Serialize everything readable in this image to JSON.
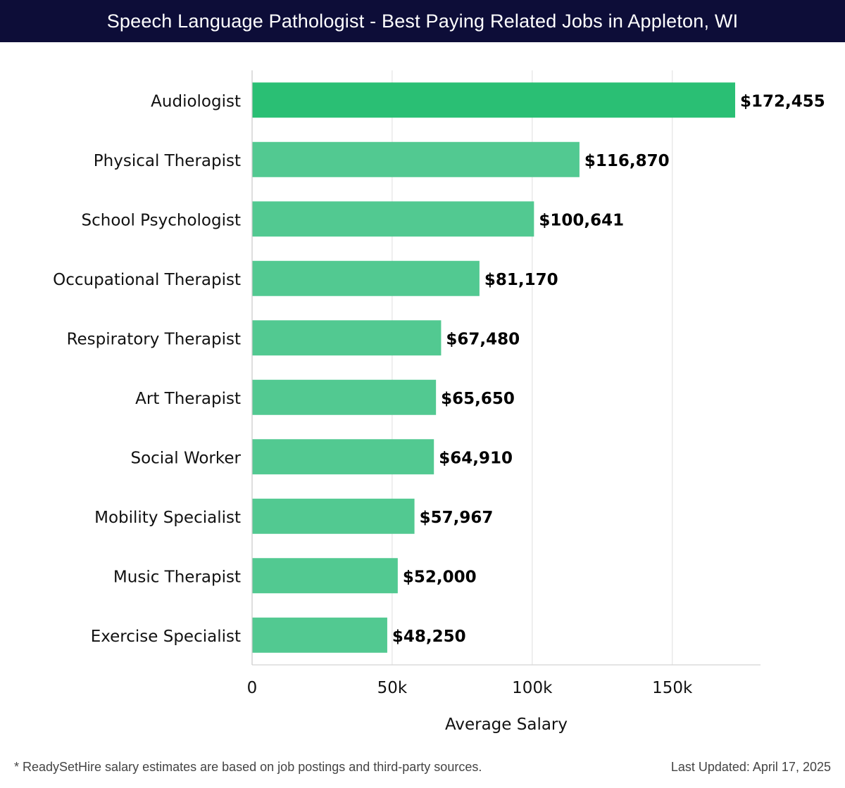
{
  "header": {
    "title": "Speech Language Pathologist - Best Paying Related Jobs in Appleton, WI"
  },
  "chart_data": {
    "type": "bar",
    "orientation": "horizontal",
    "categories": [
      "Audiologist",
      "Physical Therapist",
      "School Psychologist",
      "Occupational Therapist",
      "Respiratory Therapist",
      "Art Therapist",
      "Social Worker",
      "Mobility Specialist",
      "Music Therapist",
      "Exercise Specialist"
    ],
    "values": [
      172455,
      116870,
      100641,
      81170,
      67480,
      65650,
      64910,
      57967,
      52000,
      48250
    ],
    "value_labels": [
      "$172,455",
      "$116,870",
      "$100,641",
      "$81,170",
      "$67,480",
      "$65,650",
      "$64,910",
      "$57,967",
      "$52,000",
      "$48,250"
    ],
    "xlabel": "Average Salary",
    "ylabel": "",
    "xlim": [
      0,
      181500
    ],
    "xticks": [
      0,
      50000,
      100000,
      150000
    ],
    "xtick_labels": [
      "0",
      "50k",
      "100k",
      "150k"
    ],
    "grid": true,
    "colors": {
      "top_bar": "#2abf74",
      "bar": "#52c991",
      "grid": "#e4e4e4",
      "title_bg": "#0d0d38"
    }
  },
  "footer": {
    "note": "* ReadySetHire salary estimates are based on job postings and third-party sources.",
    "updated": "Last Updated: April 17, 2025"
  }
}
